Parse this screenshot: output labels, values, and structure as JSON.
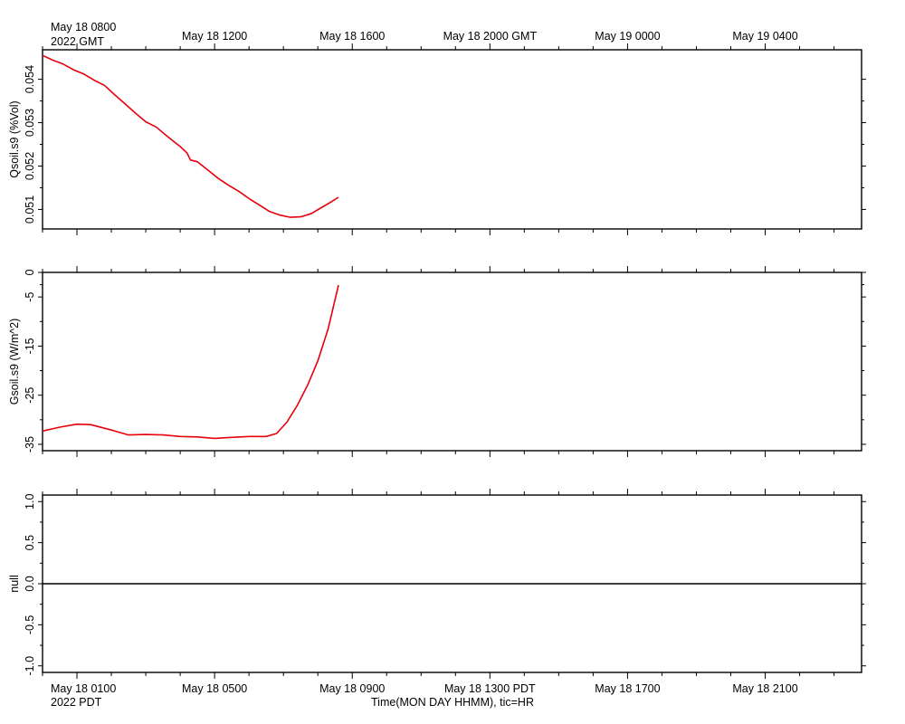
{
  "header": {
    "top_left_time": "May 18 0800",
    "top_left_year": "2022 GMT",
    "bottom_left_time": "May 18 0100",
    "bottom_left_year": "2022 PDT",
    "xlabel": "Time(MON DAY HHMM), tic=HR"
  },
  "colors": {
    "series": "#e8000b",
    "axis": "#000000"
  },
  "chart_data": [
    {
      "type": "line",
      "ylabel": "Qsoil.s9 (%Vol)",
      "x_unit": "hours since 2022-05-18 00:00 PDT",
      "xlim": [
        0,
        23.8
      ],
      "ylim": [
        0.05055,
        0.05468
      ],
      "yticks": [
        0.051,
        0.052,
        0.053,
        0.054
      ],
      "yticklabels": [
        "0.051",
        "0.052",
        "0.053",
        "0.054"
      ],
      "top_xticks": [
        1,
        5,
        9,
        13,
        17,
        21
      ],
      "top_xticklabels": [
        "May 18 0800",
        "May 18 1200",
        "May 18 1600",
        "May 18 2000 GMT",
        "May 19 0000",
        "May 19 0400"
      ],
      "series": [
        {
          "x": [
            0,
            0.3,
            0.6,
            0.9,
            1.2,
            1.5,
            1.8,
            2.1,
            2.4,
            2.7,
            3.0,
            3.3,
            3.6,
            3.9,
            4.0,
            4.2,
            4.3,
            4.5,
            4.8,
            5.1,
            5.4,
            5.7,
            6.0,
            6.3,
            6.6,
            6.9,
            7.2,
            7.5,
            7.8,
            8.1,
            8.4,
            8.6
          ],
          "y": [
            0.05455,
            0.05444,
            0.05435,
            0.05422,
            0.05412,
            0.05398,
            0.05386,
            0.05364,
            0.05343,
            0.05322,
            0.05302,
            0.0529,
            0.0527,
            0.05251,
            0.05245,
            0.0523,
            0.05214,
            0.0521,
            0.05191,
            0.05172,
            0.05156,
            0.05142,
            0.05125,
            0.0511,
            0.05095,
            0.05087,
            0.05082,
            0.05083,
            0.0509,
            0.05104,
            0.05118,
            0.05128
          ]
        }
      ]
    },
    {
      "type": "line",
      "ylabel": "Gsoil.s9 (W/m^2)",
      "x_unit": "hours since 2022-05-18 00:00 PDT",
      "xlim": [
        0,
        23.8
      ],
      "ylim": [
        -36.3,
        0
      ],
      "yticks": [
        0,
        -5,
        -15,
        -25,
        -35
      ],
      "yticklabels": [
        "0",
        "-5",
        "-15",
        "-25",
        "-35"
      ],
      "zero_line": "dashed",
      "series": [
        {
          "x": [
            0,
            0.5,
            1.0,
            1.4,
            2.0,
            2.5,
            3.0,
            3.5,
            4.0,
            4.5,
            5.0,
            5.5,
            6.0,
            6.5,
            6.8,
            7.1,
            7.4,
            7.7,
            8.0,
            8.3,
            8.6
          ],
          "y": [
            -32.3,
            -31.5,
            -30.9,
            -31.0,
            -32.1,
            -33.1,
            -33.0,
            -33.1,
            -33.4,
            -33.5,
            -33.8,
            -33.6,
            -33.4,
            -33.4,
            -32.8,
            -30.5,
            -27.1,
            -23.0,
            -18.0,
            -11.5,
            -2.6
          ]
        }
      ]
    },
    {
      "type": "line",
      "ylabel": "null",
      "xlim": [
        0,
        23.8
      ],
      "ylim": [
        -1.08,
        1.08
      ],
      "yticks": [
        1.0,
        0.5,
        0.0,
        -0.5,
        -1.0
      ],
      "yticklabels": [
        "1.0",
        "0.5",
        "0.0",
        "-0.5",
        "-1.0"
      ],
      "bottom_xticks": [
        1,
        5,
        9,
        13,
        17,
        21
      ],
      "bottom_xticklabels": [
        "May 18 0100",
        "May 18 0500",
        "May 18 0900",
        "May 18 1300 PDT",
        "May 18 1700",
        "May 18 2100"
      ],
      "series": [
        {
          "x": [
            0,
            23.8
          ],
          "y": [
            0,
            0
          ]
        }
      ]
    }
  ]
}
